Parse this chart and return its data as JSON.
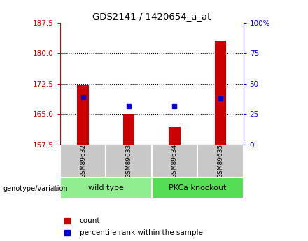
{
  "title": "GDS2141 / 1420654_a_at",
  "samples": [
    "GSM89632",
    "GSM89633",
    "GSM89634",
    "GSM89635"
  ],
  "group_spans": [
    {
      "start": 0,
      "end": 1,
      "label": "wild type",
      "color": "#90EE90"
    },
    {
      "start": 2,
      "end": 3,
      "label": "PKCa knockout",
      "color": "#55DD55"
    }
  ],
  "bar_color": "#CC0000",
  "dot_color": "#0000CC",
  "red_values": [
    172.3,
    165.1,
    161.8,
    183.2
  ],
  "blue_values": [
    169.2,
    167.0,
    167.0,
    168.8
  ],
  "ylim_left": [
    157.5,
    187.5
  ],
  "yticks_left": [
    157.5,
    165.0,
    172.5,
    180.0,
    187.5
  ],
  "ylim_right": [
    0,
    100
  ],
  "yticks_right": [
    0,
    25,
    50,
    75,
    100
  ],
  "ybase": 157.5,
  "bg_color": "#ffffff",
  "label_color_left": "#CC0000",
  "label_color_right": "#0000CC",
  "bar_width": 0.25,
  "sample_box_color": "#C8C8C8",
  "label_count": "count",
  "label_percentile": "percentile rank within the sample",
  "genotype_label": "genotype/variation"
}
